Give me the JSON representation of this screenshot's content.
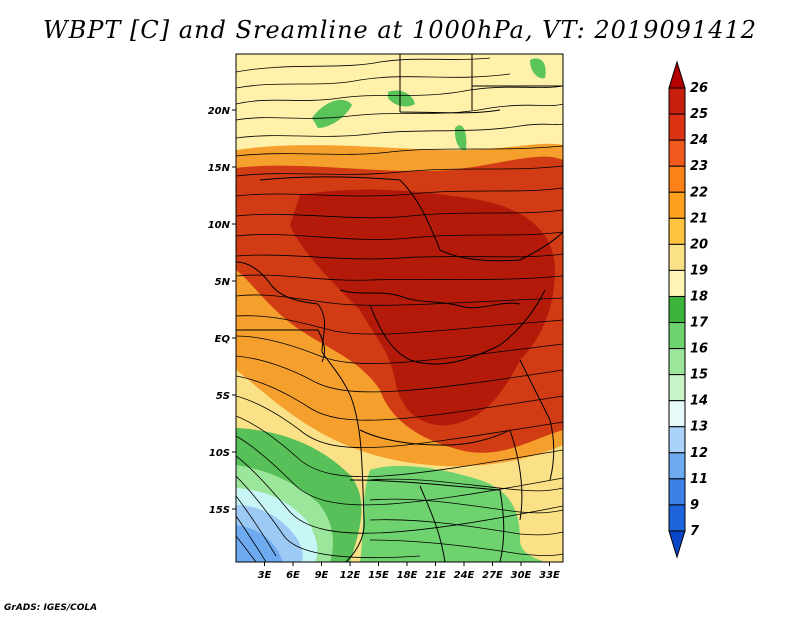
{
  "title": "WBPT [C] and Sreamline at 1000hPa, VT: 2019091412",
  "footer": "GrADS: IGES/COLA",
  "map": {
    "lon_labels": [
      "3E",
      "6E",
      "9E",
      "12E",
      "15E",
      "18E",
      "21E",
      "24E",
      "27E",
      "30E",
      "33E"
    ],
    "lat_labels": [
      "20N",
      "15N",
      "10N",
      "5N",
      "EQ",
      "5S",
      "10S",
      "15S"
    ]
  },
  "colorbar": {
    "labels": [
      "26",
      "25",
      "24",
      "23",
      "22",
      "21",
      "20",
      "19",
      "18",
      "17",
      "16",
      "15",
      "14",
      "13",
      "12",
      "11",
      "9",
      "7"
    ],
    "colors": [
      "#b40000",
      "#c81e0e",
      "#dc3214",
      "#f05a1e",
      "#fa8218",
      "#ffa01e",
      "#ffc341",
      "#fae187",
      "#fff5b4",
      "#3cb43c",
      "#6ed26e",
      "#9be69b",
      "#c8f5c8",
      "#e6fafa",
      "#aad2fa",
      "#6eaaf0",
      "#3c82e6",
      "#1e64dc",
      "#0a46c8"
    ]
  }
}
